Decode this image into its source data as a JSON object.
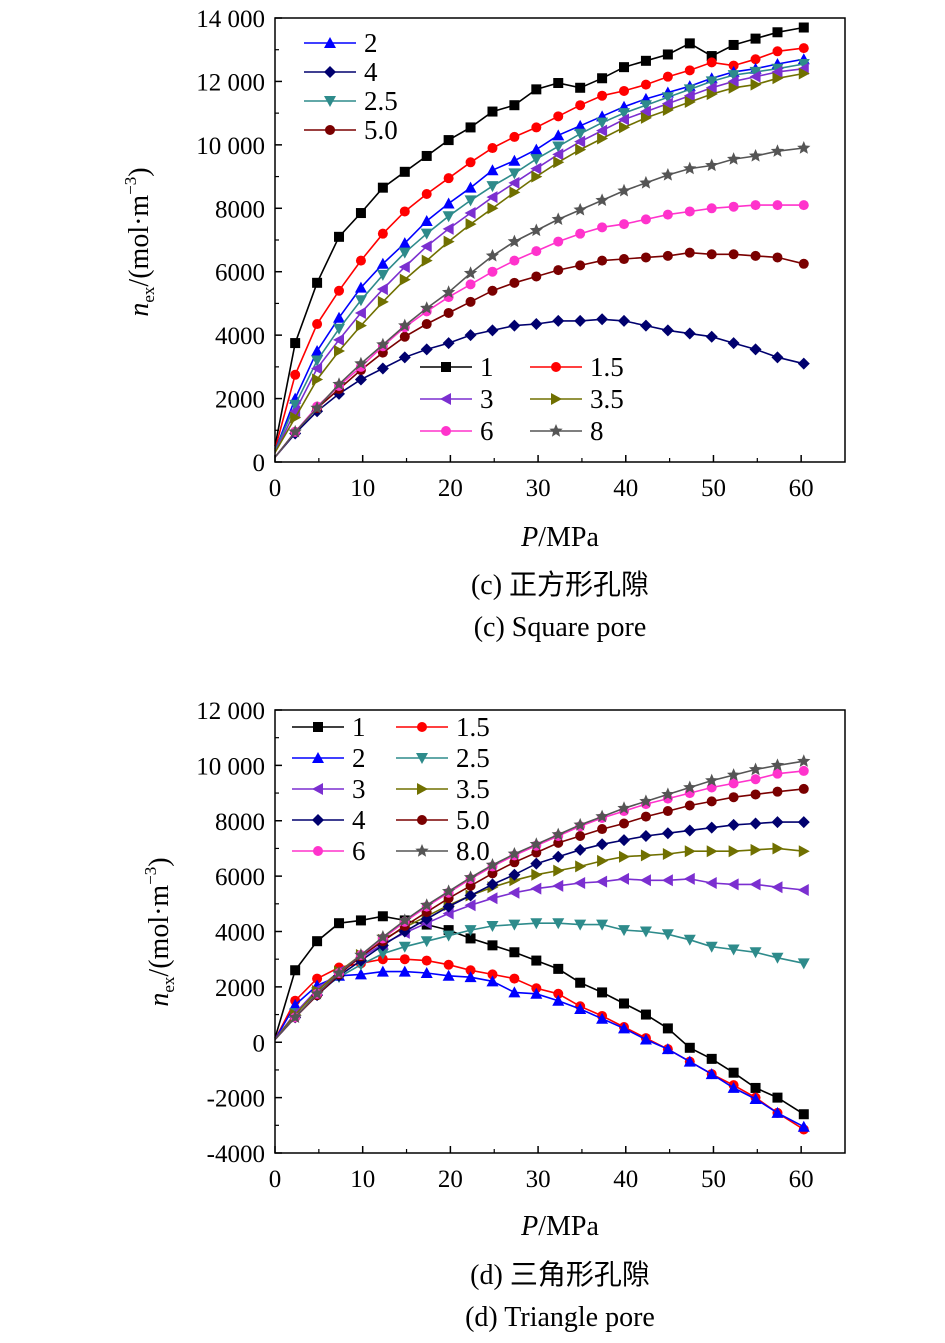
{
  "chart_data": [
    {
      "type": "line",
      "caption_cn": "(c) 正方形孔隙",
      "caption_en": "(c) Square pore",
      "xlabel_main": "P",
      "xlabel_unit": "/MPa",
      "ylabel_base": "n",
      "ylabel_sub": "ex",
      "ylabel_unit": "/(mol·m",
      "ylabel_exp": "−3",
      "ylabel_close": ")",
      "xlim": [
        0,
        65
      ],
      "ylim": [
        0,
        14000
      ],
      "xticks": [
        0,
        10,
        20,
        30,
        40,
        50,
        60
      ],
      "xtick_labels": [
        "0",
        "10",
        "20",
        "30",
        "40",
        "50",
        "60"
      ],
      "yticks": [
        0,
        2000,
        4000,
        6000,
        8000,
        10000,
        12000,
        14000
      ],
      "ytick_labels": [
        "0",
        "2000",
        "4000",
        "6000",
        "8000",
        "10 000",
        "12 000",
        "14 000"
      ],
      "x": [
        0,
        2.3,
        4.8,
        7.3,
        9.8,
        12.3,
        14.8,
        17.3,
        19.8,
        22.3,
        24.8,
        27.3,
        29.8,
        32.3,
        34.8,
        37.3,
        39.8,
        42.3,
        44.8,
        47.3,
        49.8,
        52.3,
        54.8,
        57.3,
        60.3
      ],
      "series": [
        {
          "name": "1",
          "color": "#000000",
          "marker": "square",
          "values": [
            500,
            3750,
            5650,
            7100,
            7850,
            8650,
            9150,
            9650,
            10150,
            10550,
            11050,
            11250,
            11750,
            11950,
            11800,
            12100,
            12450,
            12650,
            12850,
            13200,
            12800,
            13150,
            13350,
            13550,
            13700
          ]
        },
        {
          "name": "1.5",
          "color": "#ff0000",
          "marker": "circle",
          "values": [
            400,
            2750,
            4350,
            5400,
            6350,
            7200,
            7900,
            8450,
            8950,
            9450,
            9900,
            10250,
            10550,
            10900,
            11250,
            11550,
            11700,
            11900,
            12150,
            12350,
            12600,
            12500,
            12700,
            12950,
            13050
          ]
        },
        {
          "name": "2",
          "color": "#0000ff",
          "marker": "triangle-up",
          "values": [
            350,
            2000,
            3500,
            4550,
            5500,
            6250,
            6900,
            7600,
            8150,
            8650,
            9200,
            9500,
            9850,
            10300,
            10600,
            10900,
            11200,
            11450,
            11650,
            11850,
            12100,
            12300,
            12400,
            12550,
            12700
          ]
        },
        {
          "name": "2.5",
          "color": "#2e8b8b",
          "marker": "triangle-down",
          "values": [
            350,
            1800,
            3200,
            4200,
            5100,
            5900,
            6600,
            7200,
            7750,
            8250,
            8700,
            9100,
            9550,
            9950,
            10350,
            10700,
            11000,
            11250,
            11500,
            11750,
            12000,
            12200,
            12300,
            12400,
            12550
          ]
        },
        {
          "name": "3",
          "color": "#7b2fd0",
          "marker": "triangle-left",
          "values": [
            300,
            1600,
            2950,
            3850,
            4700,
            5450,
            6150,
            6800,
            7350,
            7850,
            8350,
            8800,
            9250,
            9700,
            10100,
            10450,
            10800,
            11050,
            11300,
            11550,
            11800,
            12000,
            12150,
            12300,
            12400
          ]
        },
        {
          "name": "3.5",
          "color": "#707000",
          "marker": "triangle-right",
          "values": [
            300,
            1400,
            2600,
            3500,
            4300,
            5050,
            5750,
            6350,
            6950,
            7500,
            8000,
            8500,
            9000,
            9450,
            9850,
            10200,
            10550,
            10850,
            11100,
            11350,
            11600,
            11800,
            11900,
            12100,
            12250
          ]
        },
        {
          "name": "4",
          "color": "#00006e",
          "marker": "diamond",
          "values": [
            150,
            900,
            1600,
            2150,
            2600,
            2950,
            3300,
            3550,
            3750,
            4000,
            4150,
            4300,
            4350,
            4450,
            4450,
            4500,
            4450,
            4300,
            4150,
            4050,
            3950,
            3750,
            3550,
            3300,
            3100
          ]
        },
        {
          "name": "5.0",
          "color": "#7a0000",
          "marker": "circle",
          "values": [
            150,
            950,
            1700,
            2300,
            2900,
            3450,
            3950,
            4350,
            4700,
            5050,
            5400,
            5650,
            5850,
            6050,
            6200,
            6350,
            6400,
            6450,
            6500,
            6600,
            6550,
            6550,
            6500,
            6450,
            6250
          ]
        },
        {
          "name": "6",
          "color": "#ff33cc",
          "marker": "circle",
          "values": [
            150,
            950,
            1750,
            2400,
            3000,
            3650,
            4250,
            4750,
            5200,
            5600,
            6000,
            6350,
            6650,
            6950,
            7200,
            7400,
            7500,
            7650,
            7800,
            7900,
            8000,
            8050,
            8100,
            8100,
            8100
          ]
        },
        {
          "name": "8",
          "color": "#555555",
          "marker": "star",
          "values": [
            150,
            950,
            1700,
            2450,
            3100,
            3700,
            4300,
            4850,
            5350,
            5950,
            6500,
            6950,
            7300,
            7650,
            7950,
            8250,
            8550,
            8800,
            9050,
            9250,
            9350,
            9550,
            9650,
            9800,
            9900
          ]
        }
      ],
      "legend_top": {
        "placement": "top-left",
        "items": [
          "2",
          "4",
          "2.5",
          "5.0"
        ]
      },
      "legend_bottom": {
        "placement": "bottom-right",
        "items": [
          [
            "1",
            "1.5"
          ],
          [
            "3",
            "3.5"
          ],
          [
            "6",
            "8"
          ]
        ]
      }
    },
    {
      "type": "line",
      "caption_cn": "(d) 三角形孔隙",
      "caption_en": "(d) Triangle pore",
      "xlabel_main": "P",
      "xlabel_unit": "/MPa",
      "ylabel_base": "n",
      "ylabel_sub": "ex",
      "ylabel_unit": "/(mol·m",
      "ylabel_exp": "−3",
      "ylabel_close": ")",
      "xlim": [
        0,
        65
      ],
      "ylim": [
        -4000,
        12000
      ],
      "xticks": [
        0,
        10,
        20,
        30,
        40,
        50,
        60
      ],
      "xtick_labels": [
        "0",
        "10",
        "20",
        "30",
        "40",
        "50",
        "60"
      ],
      "yticks": [
        -4000,
        -2000,
        0,
        2000,
        4000,
        6000,
        8000,
        10000,
        12000
      ],
      "ytick_labels": [
        "-4000",
        "-2000",
        "0",
        "2000",
        "4000",
        "6000",
        "8000",
        "10 000",
        "12 000"
      ],
      "x": [
        0,
        2.3,
        4.8,
        7.3,
        9.8,
        12.3,
        14.8,
        17.3,
        19.8,
        22.3,
        24.8,
        27.3,
        29.8,
        32.3,
        34.8,
        37.3,
        39.8,
        42.3,
        44.8,
        47.3,
        49.8,
        52.3,
        54.8,
        57.3,
        60.3
      ],
      "series": [
        {
          "name": "1",
          "color": "#000000",
          "marker": "square",
          "values": [
            150,
            2600,
            3650,
            4300,
            4400,
            4550,
            4400,
            4250,
            4050,
            3750,
            3500,
            3250,
            2950,
            2650,
            2150,
            1800,
            1400,
            1000,
            500,
            -200,
            -600,
            -1100,
            -1650,
            -2000,
            -2600
          ]
        },
        {
          "name": "1.5",
          "color": "#ff0000",
          "marker": "circle",
          "values": [
            100,
            1500,
            2300,
            2700,
            2850,
            3000,
            3000,
            2950,
            2800,
            2600,
            2450,
            2300,
            1950,
            1750,
            1300,
            950,
            550,
            150,
            -250,
            -700,
            -1150,
            -1550,
            -2000,
            -2550,
            -3150
          ]
        },
        {
          "name": "2",
          "color": "#0000ff",
          "marker": "triangle-up",
          "values": [
            100,
            1350,
            2050,
            2400,
            2450,
            2550,
            2550,
            2500,
            2400,
            2350,
            2200,
            1800,
            1750,
            1500,
            1200,
            850,
            500,
            100,
            -250,
            -700,
            -1150,
            -1650,
            -2050,
            -2550,
            -3050
          ]
        },
        {
          "name": "2.5",
          "color": "#2e8b8b",
          "marker": "triangle-down",
          "values": [
            100,
            1050,
            1800,
            2350,
            2800,
            3200,
            3450,
            3650,
            3850,
            4050,
            4200,
            4250,
            4300,
            4300,
            4250,
            4250,
            4050,
            4000,
            3900,
            3700,
            3450,
            3350,
            3250,
            3050,
            2850
          ]
        },
        {
          "name": "3",
          "color": "#7b2fd0",
          "marker": "triangle-left",
          "values": [
            100,
            1050,
            1900,
            2550,
            3050,
            3550,
            3950,
            4300,
            4650,
            4950,
            5200,
            5400,
            5550,
            5650,
            5750,
            5800,
            5900,
            5850,
            5850,
            5900,
            5750,
            5700,
            5700,
            5600,
            5500
          ]
        },
        {
          "name": "3.5",
          "color": "#707000",
          "marker": "triangle-right",
          "values": [
            100,
            1000,
            1850,
            2550,
            3150,
            3700,
            4150,
            4550,
            4950,
            5300,
            5600,
            5850,
            6050,
            6200,
            6350,
            6550,
            6700,
            6750,
            6800,
            6900,
            6900,
            6900,
            6950,
            7000,
            6900
          ]
        },
        {
          "name": "4",
          "color": "#00006e",
          "marker": "diamond",
          "values": [
            100,
            900,
            1700,
            2400,
            2950,
            3500,
            4000,
            4450,
            4900,
            5300,
            5700,
            6050,
            6450,
            6700,
            6950,
            7150,
            7300,
            7450,
            7550,
            7650,
            7750,
            7850,
            7900,
            7950,
            7950
          ]
        },
        {
          "name": "5.0",
          "color": "#7a0000",
          "marker": "circle",
          "values": [
            100,
            900,
            1700,
            2450,
            3100,
            3650,
            4200,
            4700,
            5200,
            5650,
            6100,
            6500,
            6850,
            7200,
            7450,
            7700,
            7900,
            8150,
            8350,
            8550,
            8700,
            8850,
            8950,
            9050,
            9150
          ]
        },
        {
          "name": "6",
          "color": "#ff33cc",
          "marker": "circle",
          "values": [
            100,
            900,
            1750,
            2500,
            3150,
            3750,
            4350,
            4900,
            5400,
            5900,
            6350,
            6750,
            7100,
            7450,
            7800,
            8100,
            8350,
            8600,
            8800,
            9000,
            9200,
            9350,
            9500,
            9700,
            9800
          ]
        },
        {
          "name": "8.0",
          "color": "#555555",
          "marker": "star",
          "values": [
            100,
            900,
            1750,
            2500,
            3150,
            3800,
            4400,
            4950,
            5450,
            5950,
            6400,
            6800,
            7150,
            7500,
            7850,
            8150,
            8450,
            8700,
            8950,
            9200,
            9450,
            9650,
            9850,
            10000,
            10150
          ]
        }
      ],
      "legend": {
        "placement": "top-left",
        "items": [
          [
            "1",
            "1.5"
          ],
          [
            "2",
            "2.5"
          ],
          [
            "3",
            "3.5"
          ],
          [
            "4",
            "5.0"
          ],
          [
            "6",
            "8.0"
          ]
        ]
      }
    }
  ]
}
